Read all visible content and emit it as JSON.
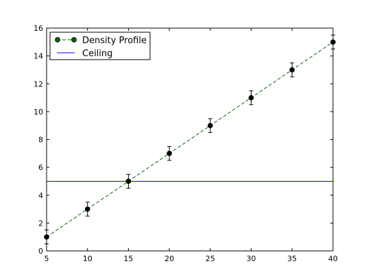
{
  "chart_data": {
    "type": "line",
    "title": "",
    "xlabel": "",
    "ylabel": "",
    "xlim": [
      5,
      40
    ],
    "ylim": [
      0,
      16
    ],
    "xticks": [
      5,
      10,
      15,
      20,
      25,
      30,
      35,
      40
    ],
    "yticks": [
      0,
      2,
      4,
      6,
      8,
      10,
      12,
      14,
      16
    ],
    "grid": false,
    "legend_position": "top-left",
    "series": [
      {
        "name": "Density Profile",
        "style": "dashed line with circle markers and error bars",
        "line_color": "#006400",
        "marker_color": "#000000",
        "x": [
          5,
          10,
          15,
          20,
          25,
          30,
          35,
          40
        ],
        "y": [
          1,
          3,
          5,
          7,
          9,
          11,
          13,
          15
        ],
        "yerr": [
          0.5,
          0.5,
          0.5,
          0.5,
          0.5,
          0.5,
          0.5,
          0.5
        ]
      },
      {
        "name": "Ceiling",
        "style": "solid horizontal line",
        "line_color": "#0000ff",
        "y": 5
      }
    ]
  }
}
